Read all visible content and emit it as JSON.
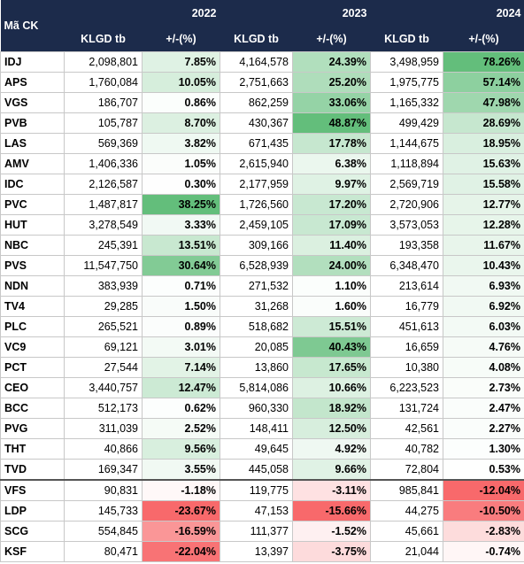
{
  "header": {
    "ticker": "Mã CK",
    "years": [
      "2022",
      "2023",
      "2024"
    ],
    "subheaders": [
      "KLGD tb",
      "+/-(%)",
      "KLGD tb",
      "+/-(%)",
      "KLGD tb",
      "+/-(%)"
    ]
  },
  "table": {
    "rows": [
      [
        "IDJ",
        "2,098,801",
        "7.85%",
        "4,164,578",
        "24.39%",
        "3,498,959",
        "78.26%"
      ],
      [
        "APS",
        "1,760,084",
        "10.05%",
        "2,751,663",
        "25.20%",
        "1,975,775",
        "57.14%"
      ],
      [
        "VGS",
        "186,707",
        "0.86%",
        "862,259",
        "33.06%",
        "1,165,332",
        "47.98%"
      ],
      [
        "PVB",
        "105,787",
        "8.70%",
        "430,367",
        "48.87%",
        "499,429",
        "28.69%"
      ],
      [
        "LAS",
        "569,369",
        "3.82%",
        "671,435",
        "17.78%",
        "1,144,675",
        "18.95%"
      ],
      [
        "AMV",
        "1,406,336",
        "1.05%",
        "2,615,940",
        "6.38%",
        "1,118,894",
        "15.63%"
      ],
      [
        "IDC",
        "2,126,587",
        "0.30%",
        "2,177,959",
        "9.97%",
        "2,569,719",
        "15.58%"
      ],
      [
        "PVC",
        "1,487,817",
        "38.25%",
        "1,726,560",
        "17.20%",
        "2,720,906",
        "12.77%"
      ],
      [
        "HUT",
        "3,278,549",
        "3.33%",
        "2,459,105",
        "17.09%",
        "3,573,053",
        "12.28%"
      ],
      [
        "NBC",
        "245,391",
        "13.51%",
        "309,166",
        "11.40%",
        "193,358",
        "11.67%"
      ],
      [
        "PVS",
        "11,547,750",
        "30.64%",
        "6,528,939",
        "24.00%",
        "6,348,470",
        "10.43%"
      ],
      [
        "NDN",
        "383,939",
        "0.71%",
        "271,532",
        "1.10%",
        "213,614",
        "6.93%"
      ],
      [
        "TV4",
        "29,285",
        "1.50%",
        "31,268",
        "1.60%",
        "16,779",
        "6.92%"
      ],
      [
        "PLC",
        "265,521",
        "0.89%",
        "518,682",
        "15.51%",
        "451,613",
        "6.03%"
      ],
      [
        "VC9",
        "69,121",
        "3.01%",
        "20,085",
        "40.43%",
        "16,659",
        "4.76%"
      ],
      [
        "PCT",
        "27,544",
        "7.14%",
        "13,860",
        "17.65%",
        "10,380",
        "4.08%"
      ],
      [
        "CEO",
        "3,440,757",
        "12.47%",
        "5,814,086",
        "10.66%",
        "6,223,523",
        "2.73%"
      ],
      [
        "BCC",
        "512,173",
        "0.62%",
        "960,330",
        "18.92%",
        "131,724",
        "2.47%"
      ],
      [
        "PVG",
        "311,039",
        "2.52%",
        "148,411",
        "12.50%",
        "42,561",
        "2.27%"
      ],
      [
        "THT",
        "40,866",
        "9.56%",
        "49,645",
        "4.92%",
        "40,782",
        "1.30%"
      ],
      [
        "TVD",
        "169,347",
        "3.55%",
        "445,058",
        "9.66%",
        "72,804",
        "0.53%"
      ],
      [
        "VFS",
        "90,831",
        "-1.18%",
        "119,775",
        "-3.11%",
        "985,841",
        "-12.04%"
      ],
      [
        "LDP",
        "145,733",
        "-23.67%",
        "47,153",
        "-15.66%",
        "44,275",
        "-10.50%"
      ],
      [
        "SCG",
        "554,845",
        "-16.59%",
        "111,377",
        "-1.52%",
        "45,661",
        "-2.83%"
      ],
      [
        "KSF",
        "80,471",
        "-22.04%",
        "13,397",
        "-3.75%",
        "21,044",
        "-0.74%"
      ]
    ]
  }
}
